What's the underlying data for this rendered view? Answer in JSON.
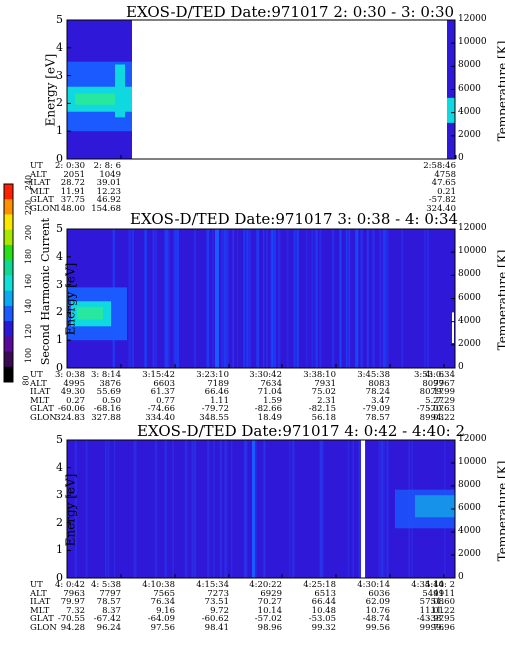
{
  "chart_data": [
    {
      "type": "heatmap",
      "title": "EXOS-D/TED   Date:971017  2: 0:30 - 3: 0:30",
      "ylabel": "Energy [eV]",
      "y2label": "Temperature [K]",
      "ylim": [
        0,
        5
      ],
      "y2lim": [
        0,
        12000
      ],
      "yticks": [
        "0",
        "1",
        "2",
        "3",
        "4",
        "5"
      ],
      "y2ticks": [
        "0",
        "2000",
        "4000",
        "6000",
        "8000",
        "10000",
        "12000"
      ],
      "data_gap": true,
      "table": {
        "row_labels": [
          "UT",
          "ALT",
          "ILAT",
          "MLT",
          "GLAT",
          "GLON"
        ],
        "columns": [
          {
            "UT": "2: 0:30",
            "ALT": "2051",
            "ILAT": "28.72",
            "MLT": "11.91",
            "GLAT": "37.75",
            "GLON": "148.00"
          },
          {
            "UT": "2: 8: 6",
            "ALT": "1049",
            "ILAT": "39.01",
            "MLT": "12.23",
            "GLAT": "46.92",
            "GLON": "154.68"
          },
          {
            "UT": "2:58:46",
            "ALT": "4758",
            "ILAT": "47.65",
            "MLT": "0.21",
            "GLAT": "-57.82",
            "GLON": "324.40"
          }
        ]
      }
    },
    {
      "type": "heatmap",
      "title": "EXOS-D/TED   Date:971017  3: 0:38 - 4: 0:34",
      "ylabel": "Energy [eV]",
      "y2label": "Temperature [K]",
      "ylim": [
        0,
        5
      ],
      "y2lim": [
        0,
        12000
      ],
      "yticks": [
        "0",
        "1",
        "2",
        "3",
        "4",
        "5"
      ],
      "y2ticks": [
        "0",
        "2000",
        "4000",
        "6000",
        "8000",
        "10000",
        "12000"
      ],
      "table": {
        "row_labels": [
          "UT",
          "ALT",
          "ILAT",
          "MLT",
          "GLAT",
          "GLON"
        ],
        "columns": [
          {
            "UT": "3: 0:38",
            "ALT": "4995",
            "ILAT": "49.30",
            "MLT": "0.27",
            "GLAT": "-60.06",
            "GLON": "324.83"
          },
          {
            "UT": "3: 8:14",
            "ALT": "3876",
            "ILAT": "55.69",
            "MLT": "0.50",
            "GLAT": "-68.16",
            "GLON": "327.88"
          },
          {
            "UT": "3:15:42",
            "ALT": "6603",
            "ILAT": "61.37",
            "MLT": "0.77",
            "GLAT": "-74.66",
            "GLON": "334.40"
          },
          {
            "UT": "3:23:10",
            "ALT": "7189",
            "ILAT": "66.46",
            "MLT": "1.11",
            "GLAT": "-79.72",
            "GLON": "348.55"
          },
          {
            "UT": "3:30:42",
            "ALT": "7634",
            "ILAT": "71.04",
            "MLT": "1.59",
            "GLAT": "-82.66",
            "GLON": "18.49"
          },
          {
            "UT": "3:38:10",
            "ALT": "7931",
            "ILAT": "75.02",
            "MLT": "2.31",
            "GLAT": "-82.15",
            "GLON": "56.18"
          },
          {
            "UT": "3:45:38",
            "ALT": "8083",
            "ILAT": "78.24",
            "MLT": "3.47",
            "GLAT": "-79.09",
            "GLON": "78.57"
          },
          {
            "UT": "3:53: 6",
            "ALT": "8097",
            "ILAT": "80.17",
            "MLT": "5.27",
            "GLAT": "-75.07",
            "GLON": "89.03"
          },
          {
            "UT": "4: 0:34",
            "ALT": "7967",
            "ILAT": "79.99",
            "MLT": "7.29",
            "GLAT": "-70.63",
            "GLON": "94.22"
          }
        ]
      }
    },
    {
      "type": "heatmap",
      "title": "EXOS-D/TED   Date:971017  4: 0:42 - 4:40: 2",
      "ylabel": "Energy [eV]",
      "y2label": "Temperature [K]",
      "ylim": [
        0,
        5
      ],
      "y2lim": [
        0,
        12000
      ],
      "yticks": [
        "0",
        "1",
        "2",
        "3",
        "4",
        "5"
      ],
      "y2ticks": [
        "0",
        "2000",
        "4000",
        "6000",
        "8000",
        "10000",
        "12000"
      ],
      "table": {
        "row_labels": [
          "UT",
          "ALT",
          "ILAT",
          "MLT",
          "GLAT",
          "GLON"
        ],
        "columns": [
          {
            "UT": "4: 0:42",
            "ALT": "7963",
            "ILAT": "79.97",
            "MLT": "7.32",
            "GLAT": "-70.55",
            "GLON": "94.28"
          },
          {
            "UT": "4: 5:38",
            "ALT": "7797",
            "ILAT": "78.57",
            "MLT": "8.37",
            "GLAT": "-67.42",
            "GLON": "96.24"
          },
          {
            "UT": "4:10:38",
            "ALT": "7565",
            "ILAT": "76.34",
            "MLT": "9.16",
            "GLAT": "-64.09",
            "GLON": "97.56"
          },
          {
            "UT": "4:15:34",
            "ALT": "7273",
            "ILAT": "73.51",
            "MLT": "9.72",
            "GLAT": "-60.62",
            "GLON": "98.41"
          },
          {
            "UT": "4:20:22",
            "ALT": "6929",
            "ILAT": "70.27",
            "MLT": "10.14",
            "GLAT": "-57.02",
            "GLON": "98.96"
          },
          {
            "UT": "4:25:18",
            "ALT": "6513",
            "ILAT": "66.44",
            "MLT": "10.48",
            "GLAT": "-53.05",
            "GLON": "99.32"
          },
          {
            "UT": "4:30:14",
            "ALT": "6036",
            "ILAT": "62.09",
            "MLT": "10.76",
            "GLAT": "-48.74",
            "GLON": "99.56"
          },
          {
            "UT": "4:35:14",
            "ALT": "5491",
            "ILAT": "57.08",
            "MLT": "11.01",
            "GLAT": "-43.97",
            "GLON": "99.76"
          },
          {
            "UT": "4:40: 2",
            "ALT": "4911",
            "ILAT": "51.60",
            "MLT": "11.22",
            "GLAT": "-38.95",
            "GLON": "99.96"
          }
        ]
      }
    }
  ],
  "colorbar": {
    "label": "Second Harmonic Current",
    "ticks": [
      "80",
      "100",
      "120",
      "140",
      "160",
      "180",
      "200",
      "220",
      "240"
    ],
    "colors": [
      "#000000",
      "#3a0a55",
      "#5a0a9a",
      "#2a18d8",
      "#1a5aff",
      "#0aaaf0",
      "#10e0d8",
      "#10d890",
      "#28e018",
      "#a8e800",
      "#f8e800",
      "#ff9000",
      "#ff2000"
    ]
  },
  "colors": {
    "background": "#3018d8",
    "band_blue": "#1a5aff",
    "band_cyan": "#10d8e0",
    "band_green": "#28e8a0",
    "blank": "#ffffff"
  }
}
